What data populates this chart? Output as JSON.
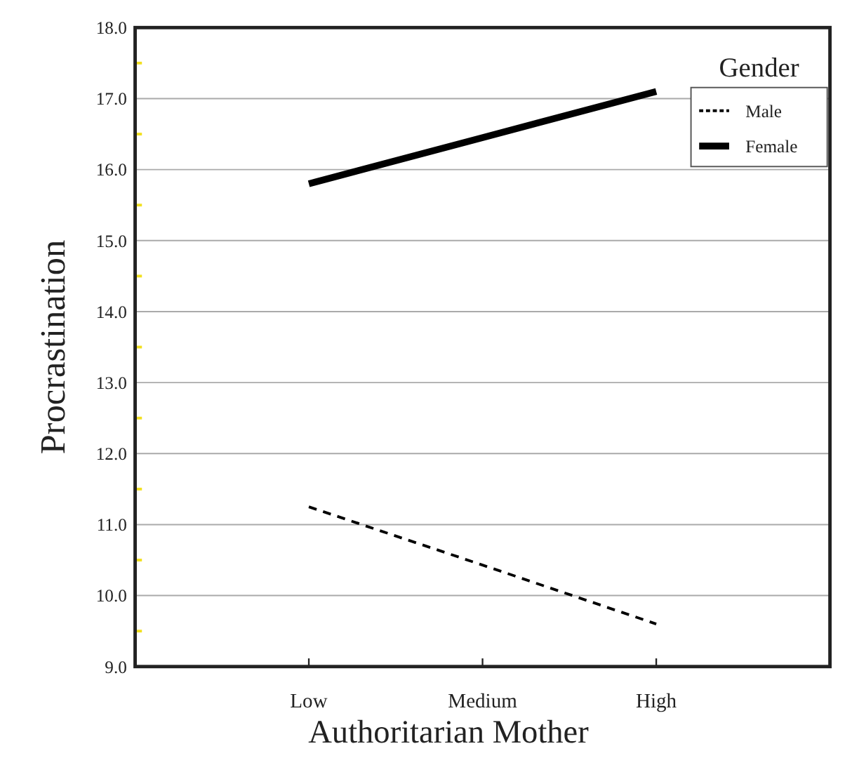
{
  "chart_data": {
    "type": "line",
    "xlabel": "Authoritarian Mother",
    "ylabel": "Procrastination",
    "legend_title": "Gender",
    "categories": [
      "Low",
      "Medium",
      "High"
    ],
    "series": [
      {
        "name": "Male",
        "color": "#000000",
        "line_style": "dashed",
        "values": [
          11.25,
          10.43,
          9.6
        ]
      },
      {
        "name": "Female",
        "color": "#000000",
        "line_style": "solid",
        "values": [
          15.8,
          16.45,
          17.1
        ]
      }
    ],
    "ylim": [
      9,
      18
    ],
    "yticks": [
      {
        "value": 9,
        "label": "9.0"
      },
      {
        "value": 9.5,
        "label": null
      },
      {
        "value": 10,
        "label": "10.0"
      },
      {
        "value": 10.5,
        "label": null
      },
      {
        "value": 11,
        "label": "11.0"
      },
      {
        "value": 11.5,
        "label": null
      },
      {
        "value": 12,
        "label": "12.0"
      },
      {
        "value": 12.5,
        "label": null
      },
      {
        "value": 13,
        "label": "13.0"
      },
      {
        "value": 13.5,
        "label": null
      },
      {
        "value": 14,
        "label": "14.0"
      },
      {
        "value": 14.5,
        "label": null
      },
      {
        "value": 15,
        "label": "15.0"
      },
      {
        "value": 15.5,
        "label": null
      },
      {
        "value": 16,
        "label": "16.0"
      },
      {
        "value": 16.5,
        "label": null
      },
      {
        "value": 17,
        "label": "17.0"
      },
      {
        "value": 17.5,
        "label": null
      },
      {
        "value": 18,
        "label": "18.0"
      }
    ],
    "grid": "y",
    "legend": "top right"
  }
}
